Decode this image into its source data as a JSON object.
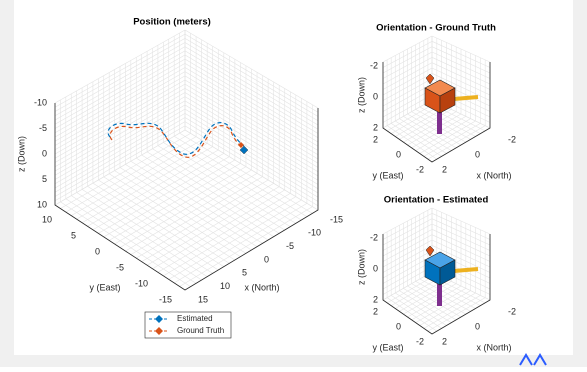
{
  "position_plot": {
    "title": "Position (meters)",
    "z_label": "z (Down)",
    "y_label": "y (East)",
    "x_label": "x (North)",
    "z_ticks": [
      "-10",
      "-5",
      "0",
      "5",
      "10"
    ],
    "y_ticks": [
      "10",
      "5",
      "0",
      "-5",
      "-10",
      "-15"
    ],
    "x_ticks": [
      "15",
      "10",
      "5",
      "0",
      "-5",
      "-10",
      "-15"
    ],
    "legend": [
      "Estimated",
      "Ground Truth"
    ]
  },
  "orientation_plots": [
    {
      "title": "Orientation - Ground Truth",
      "z_label": "z (Down)",
      "y_label": "y (East)",
      "x_label": "x (North)",
      "z_ticks": [
        "-2",
        "0",
        "2"
      ],
      "y_ticks": [
        "2",
        "0",
        "-2"
      ],
      "x_ticks": [
        "2",
        "0",
        "-2"
      ]
    },
    {
      "title": "Orientation - Estimated",
      "z_label": "z (Down)",
      "y_label": "y (East)",
      "x_label": "x (North)",
      "z_ticks": [
        "-2",
        "0",
        "2"
      ],
      "y_ticks": [
        "2",
        "0",
        "-2"
      ],
      "x_ticks": [
        "2",
        "0",
        "-2"
      ]
    }
  ]
}
